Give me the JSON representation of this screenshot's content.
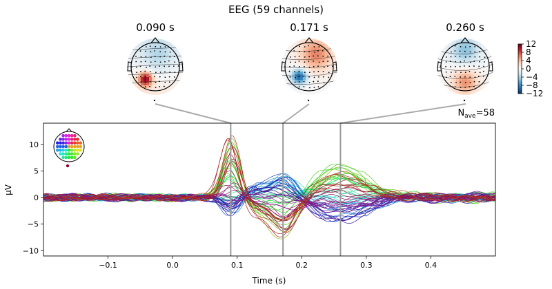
{
  "title": "EEG (59 channels)",
  "topomap_times": [
    "0.090 s",
    "0.171 s",
    "0.260 s"
  ],
  "colorbar": {
    "ticks": [
      12,
      8,
      4,
      0,
      -4,
      -8,
      -12
    ],
    "tick_labels": [
      "12",
      "8",
      "4",
      "0",
      "−4",
      "−8",
      "−12"
    ],
    "cmap": [
      "#053061",
      "#2166ac",
      "#4393c3",
      "#92c5de",
      "#d1e5f0",
      "#f7f7f7",
      "#fddbc7",
      "#f4a582",
      "#d6604d",
      "#b2182b",
      "#67001f"
    ]
  },
  "nave": {
    "prefix": "N",
    "sub": "ave",
    "value": "=58"
  },
  "chart_data": {
    "type": "line",
    "title": "EEG (59 channels)",
    "xlabel": "Time (s)",
    "ylabel": "µV",
    "xlim": [
      -0.2,
      0.5
    ],
    "ylim": [
      -11,
      14
    ],
    "xticks": [
      -0.1,
      0.0,
      0.1,
      0.2,
      0.3,
      0.4
    ],
    "xtick_labels": [
      "−0.1",
      "0.0",
      "0.1",
      "0.2",
      "0.3",
      "0.4"
    ],
    "yticks": [
      -10,
      -5,
      0,
      5,
      10
    ],
    "ytick_labels": [
      "−10",
      "−5",
      "0",
      "5",
      "10"
    ],
    "n_channels": 59,
    "vlines": [
      0.09,
      0.171,
      0.26
    ],
    "peaks": [
      {
        "time": 0.09,
        "max": 12.8,
        "min": -3.5
      },
      {
        "time": 0.171,
        "max": 5.0,
        "min": -9.5
      },
      {
        "time": 0.26,
        "max": 6.5,
        "min": -5.0
      }
    ],
    "grid": false
  }
}
